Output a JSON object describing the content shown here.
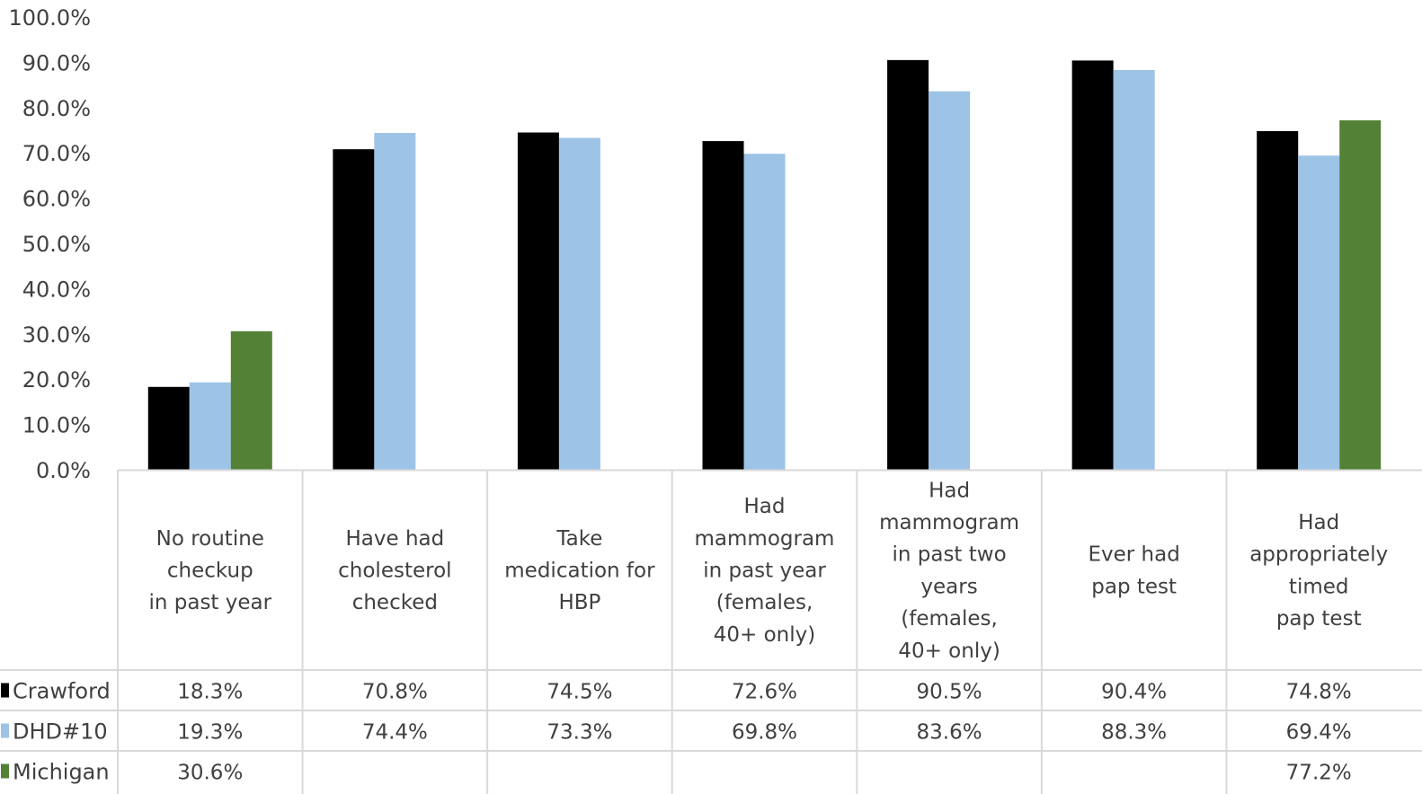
{
  "chart_data": {
    "type": "bar",
    "title": "",
    "xlabel": "",
    "ylabel": "",
    "ylim": [
      0,
      100
    ],
    "y_ticks": [
      "0.0%",
      "10.0%",
      "20.0%",
      "30.0%",
      "40.0%",
      "50.0%",
      "60.0%",
      "70.0%",
      "80.0%",
      "90.0%",
      "100.0%"
    ],
    "grid": false,
    "legend": "data-table",
    "categories": [
      [
        "No routine",
        "checkup",
        "in past year"
      ],
      [
        "Have had",
        "cholesterol",
        "checked"
      ],
      [
        "Take",
        "medication for",
        "HBP"
      ],
      [
        "Had",
        "mammogram",
        "in past year",
        "(females,",
        "40+ only)"
      ],
      [
        "Had",
        "mammogram",
        "in past two",
        "years",
        "(females,",
        "40+ only)"
      ],
      [
        "Ever had",
        "pap test"
      ],
      [
        "Had",
        "appropriately",
        "timed",
        "pap test"
      ]
    ],
    "series": [
      {
        "name": "Crawford",
        "color": "#000000",
        "values": [
          18.3,
          70.8,
          74.5,
          72.6,
          90.5,
          90.4,
          74.8
        ],
        "labels": [
          "18.3%",
          "70.8%",
          "74.5%",
          "72.6%",
          "90.5%",
          "90.4%",
          "74.8%"
        ]
      },
      {
        "name": "DHD#10",
        "color": "#9dc3e6",
        "values": [
          19.3,
          74.4,
          73.3,
          69.8,
          83.6,
          88.3,
          69.4
        ],
        "labels": [
          "19.3%",
          "74.4%",
          "73.3%",
          "69.8%",
          "83.6%",
          "88.3%",
          "69.4%"
        ]
      },
      {
        "name": "Michigan",
        "color": "#538135",
        "values": [
          30.6,
          null,
          null,
          null,
          null,
          null,
          77.2
        ],
        "labels": [
          "30.6%",
          "",
          "",
          "",
          "",
          "",
          "77.2%"
        ]
      }
    ]
  }
}
